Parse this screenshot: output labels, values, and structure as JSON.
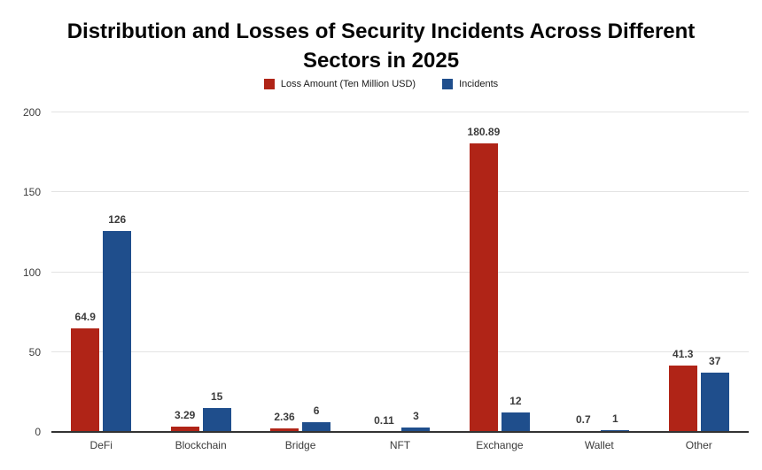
{
  "title_lines": {
    "line1": "Distribution and Losses of Security Incidents Across Different",
    "line2": "Sectors in 2025"
  },
  "chart_data": {
    "type": "bar",
    "title": "Distribution and Losses of Security Incidents Across Different Sectors in 2025",
    "categories": [
      "DeFi",
      "Blockchain",
      "Bridge",
      "NFT",
      "Exchange",
      "Wallet",
      "Other"
    ],
    "series": [
      {
        "name": "Loss Amount (Ten Million USD)",
        "color": "#B02417",
        "values": [
          64.9,
          3.29,
          2.36,
          0.11,
          180.89,
          0.7,
          41.3
        ],
        "labels": [
          "64.9",
          "3.29",
          "2.36",
          "0.11",
          "180.89",
          "0.7",
          "41.3"
        ]
      },
      {
        "name": "Incidents",
        "color": "#1F4E8C",
        "values": [
          126,
          15,
          6,
          3,
          12,
          1,
          37
        ],
        "labels": [
          "126",
          "15",
          "6",
          "3",
          "12",
          "1",
          "37"
        ]
      }
    ],
    "xlabel": "",
    "ylabel": "",
    "ylim": [
      0,
      200
    ],
    "yticks": [
      0,
      50,
      100,
      150,
      200
    ],
    "grid": true,
    "legend_position": "top",
    "colors": {
      "gridline": "#e3e3e3",
      "axis_line": "#333333",
      "tick_label": "#3d3d3d",
      "value_label": "#3c3c3c",
      "title": "#050505"
    }
  }
}
